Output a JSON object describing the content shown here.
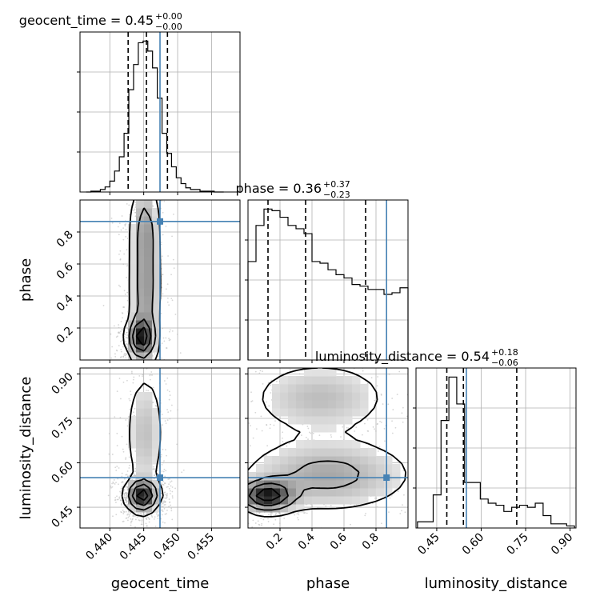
{
  "colors": {
    "truth": "#4682b4",
    "hist": "#000000",
    "grid": "#b0b0b0",
    "samples": "#bbbbbb"
  },
  "params": [
    "geocent_time",
    "phase",
    "luminosity_distance"
  ],
  "chart_data": {
    "type": "corner",
    "grid": true,
    "truths": {
      "geocent_time": 0.4474,
      "phase": 0.866,
      "luminosity_distance": 0.55
    },
    "marginals": [
      {
        "param": "geocent_time",
        "title_name": "geocent_time = 0.45",
        "title_sup": "+0.00",
        "title_sub": "−0.00",
        "xlim": [
          0.4356,
          0.4592
        ],
        "x_ticks": [
          0.44,
          0.445,
          0.45,
          0.455
        ],
        "x_ticklabels": [
          "0.440",
          "0.445",
          "0.450",
          "0.455"
        ],
        "xlabel": "geocent_time",
        "quantiles": [
          0.4427,
          0.4454,
          0.4485
        ],
        "bin_edges": [
          0.4365,
          0.4372,
          0.4379,
          0.4386,
          0.4393,
          0.44,
          0.4407,
          0.4414,
          0.4421,
          0.4428,
          0.4435,
          0.4442,
          0.4449,
          0.4456,
          0.4463,
          0.447,
          0.4477,
          0.4484,
          0.4491,
          0.4498,
          0.4505,
          0.4512,
          0.4519,
          0.4526,
          0.4533,
          0.454,
          0.4547,
          0.4554,
          0.4561,
          0.4568
        ],
        "counts": [
          0,
          1,
          1,
          3,
          6,
          13,
          25,
          42,
          70,
          122,
          152,
          178,
          180,
          168,
          148,
          112,
          70,
          46,
          30,
          17,
          10,
          5,
          3,
          3,
          1,
          1,
          1,
          0,
          0
        ]
      },
      {
        "param": "phase",
        "title_name": "phase = 0.36",
        "title_sup": "+0.37",
        "title_sub": "−0.23",
        "xlim": [
          0.0,
          1.0
        ],
        "x_ticks": [
          0.2,
          0.4,
          0.6,
          0.8
        ],
        "x_ticklabels": [
          "0.2",
          "0.4",
          "0.6",
          "0.8"
        ],
        "xlabel": "phase",
        "quantiles": [
          0.125,
          0.36,
          0.735
        ],
        "bin_edges": [
          0.0,
          0.05,
          0.1,
          0.15,
          0.2,
          0.25,
          0.3,
          0.35,
          0.4,
          0.45,
          0.5,
          0.55,
          0.6,
          0.65,
          0.7,
          0.75,
          0.8,
          0.85,
          0.9,
          0.95,
          1.0
        ],
        "counts": [
          60,
          82,
          92,
          91,
          87,
          82,
          80,
          77,
          60,
          59,
          55,
          52,
          50,
          46,
          45,
          43,
          43,
          40,
          41,
          44
        ]
      },
      {
        "param": "luminosity_distance",
        "title_name": "luminosity_distance = 0.54",
        "title_sup": "+0.18",
        "title_sub": "−0.06",
        "xlim": [
          0.38,
          0.92
        ],
        "x_ticks": [
          0.45,
          0.6,
          0.75,
          0.9
        ],
        "x_ticklabels": [
          "0.45",
          "0.60",
          "0.75",
          "0.90"
        ],
        "xlabel": "luminosity_distance",
        "quantiles": [
          0.484,
          0.54,
          0.72
        ],
        "bin_edges": [
          0.385,
          0.4115,
          0.438,
          0.4645,
          0.491,
          0.5175,
          0.544,
          0.5705,
          0.597,
          0.6235,
          0.65,
          0.6765,
          0.703,
          0.7295,
          0.756,
          0.7825,
          0.809,
          0.8355,
          0.862,
          0.8885,
          0.915
        ],
        "counts": [
          3,
          3,
          16,
          52,
          73,
          60,
          22,
          22,
          14,
          12,
          11,
          8,
          10,
          11,
          10,
          12,
          6,
          2,
          2,
          1
        ]
      }
    ],
    "joint_panels": [
      {
        "x": "geocent_time",
        "y": "phase",
        "ylim": [
          0.0,
          1.0
        ],
        "y_ticks": [
          0.2,
          0.4,
          0.6,
          0.8
        ],
        "y_ticklabels": [
          "0.2",
          "0.4",
          "0.6",
          "0.8"
        ],
        "ylabel": "phase",
        "density_modes": [
          {
            "x": 0.4446,
            "y": 0.14,
            "sx": 0.0011,
            "sy": 0.07,
            "w": 1.0
          },
          {
            "x": 0.4452,
            "y": 0.45,
            "sx": 0.0013,
            "sy": 0.3,
            "w": 0.55
          },
          {
            "x": 0.4452,
            "y": 0.85,
            "sx": 0.0012,
            "sy": 0.15,
            "w": 0.3
          }
        ]
      },
      {
        "x": "geocent_time",
        "y": "luminosity_distance",
        "ylim": [
          0.38,
          0.92
        ],
        "y_ticks": [
          0.45,
          0.6,
          0.75,
          0.9
        ],
        "y_ticklabels": [
          "0.45",
          "0.60",
          "0.75",
          "0.90"
        ],
        "ylabel": "luminosity_distance",
        "density_modes": [
          {
            "x": 0.4448,
            "y": 0.49,
            "sx": 0.0013,
            "sy": 0.03,
            "w": 1.0
          },
          {
            "x": 0.4452,
            "y": 0.7,
            "sx": 0.0016,
            "sy": 0.12,
            "w": 0.28
          }
        ]
      },
      {
        "x": "phase",
        "y": "luminosity_distance",
        "ylim": [
          0.38,
          0.92
        ],
        "density_modes": [
          {
            "x": 0.12,
            "y": 0.49,
            "sx": 0.1,
            "sy": 0.03,
            "w": 1.0
          },
          {
            "x": 0.5,
            "y": 0.56,
            "sx": 0.3,
            "sy": 0.07,
            "w": 0.4
          },
          {
            "x": 0.45,
            "y": 0.82,
            "sx": 0.25,
            "sy": 0.07,
            "w": 0.3
          }
        ]
      }
    ]
  }
}
